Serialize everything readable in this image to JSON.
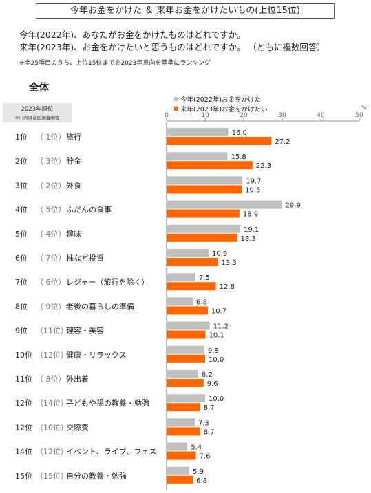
{
  "title": "今年お金をかけた ＆ 来年お金をかけたいもの(上位15位)",
  "question_1": "今年(2022年)、あなたがお金をかけたものはどれですか。",
  "question_2": "来年(2023年)、お金をかけたいと思うものはどれですか。 （ともに複数回答）",
  "note": "※全25項目のうち、上位15位までを2023年意向を基準にランキング",
  "section": "全体",
  "rank_header": {
    "line1": "2023年順位",
    "line2": "※( )内は前回調査順位"
  },
  "colors": {
    "series_2022": "#bfbfbf",
    "series_2023": "#ff6600"
  },
  "chart_data": {
    "type": "bar",
    "orientation": "horizontal",
    "unit": "%",
    "xlim": [
      0,
      50
    ],
    "ticks": [
      0,
      10,
      20,
      30,
      40,
      50
    ],
    "legend_position": "top",
    "categories": [
      "旅行",
      "貯金",
      "外食",
      "ふだんの食事",
      "趣味",
      "株など投資",
      "レジャー（旅行を除く）",
      "老後の暮らしの準備",
      "理容・美容",
      "健康・リラックス",
      "外出着",
      "子どもや孫の教養・勉強",
      "交際費",
      "イベント、ライブ、フェス",
      "自分の教養・勉強"
    ],
    "ranks": [
      "1位",
      "2位",
      "3位",
      "4位",
      "5位",
      "6位",
      "7位",
      "8位",
      "9位",
      "10位",
      "11位",
      "12位",
      "12位",
      "14位",
      "15位"
    ],
    "previous_ranks": [
      "（ 1位）",
      "（ 3位）",
      "（ 2位）",
      "（ 5位）",
      "（ 4位）",
      "（ 7位）",
      "（ 6位）",
      "（ 9位）",
      "（11位）",
      "（12位）",
      "（ 8位）",
      "（14位）",
      "（10位）",
      "（12位）",
      "（15位）"
    ],
    "series": [
      {
        "name": "今年(2022年)お金をかけた",
        "values": [
          16.0,
          15.8,
          19.7,
          29.9,
          19.1,
          10.9,
          7.5,
          6.8,
          11.2,
          9.8,
          8.2,
          10.0,
          7.3,
          5.4,
          5.9
        ]
      },
      {
        "name": "来年(2023年)お金をかけたい",
        "values": [
          27.2,
          22.3,
          19.5,
          18.9,
          18.3,
          13.3,
          12.8,
          10.7,
          10.1,
          10.0,
          9.6,
          8.7,
          8.7,
          7.6,
          6.8
        ]
      }
    ]
  }
}
